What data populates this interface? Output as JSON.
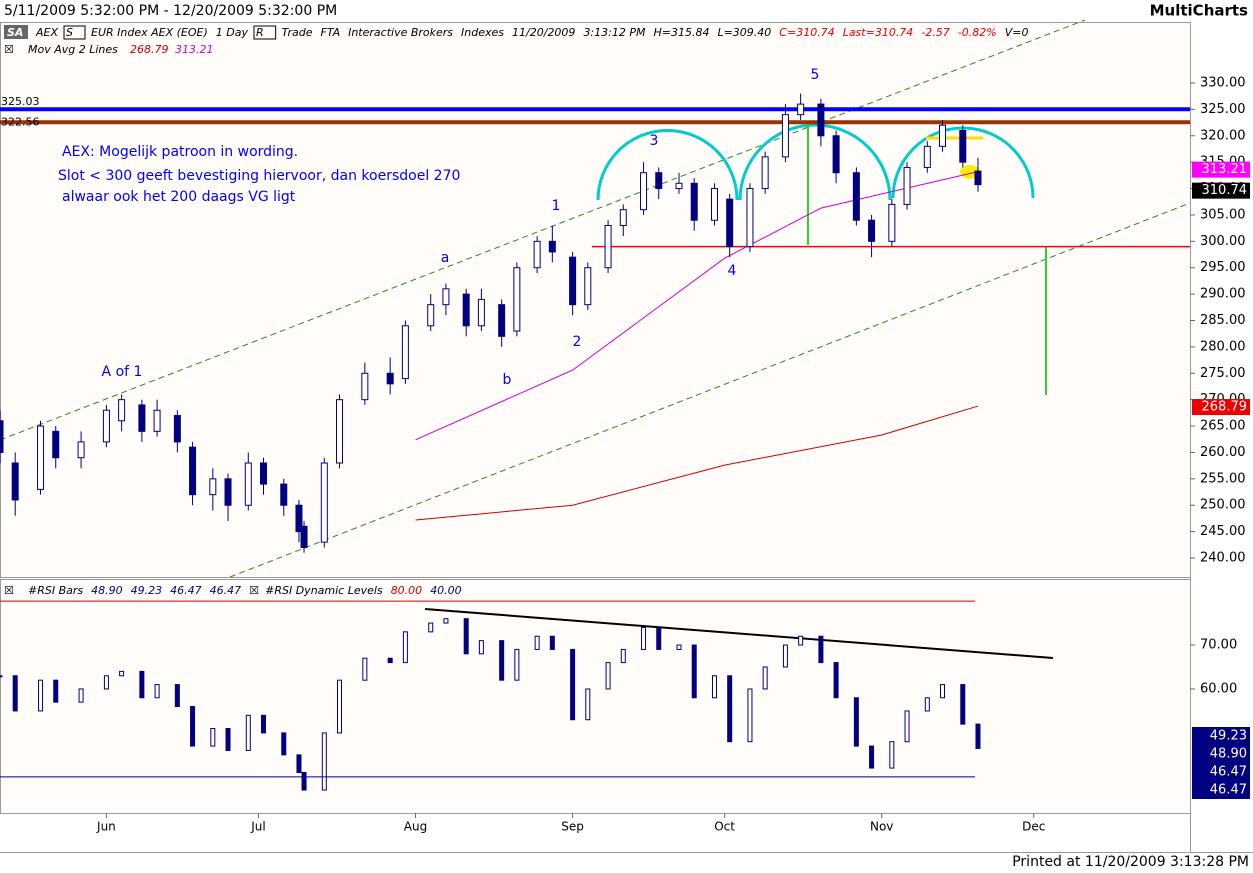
{
  "header": {
    "range": "5/11/2009 5:32:00 PM - 12/20/2009 5:32:00 PM",
    "brand": "MultiCharts",
    "printed": "Printed at 11/20/2009 3:13:28 PM"
  },
  "chart_data": [
    {
      "type": "candlestick",
      "symbol_box": "SA",
      "status": [
        "AEX",
        "S",
        "EUR Index AEX (EOE)",
        "1 Day",
        "R",
        "Trade",
        "FTA",
        "Interactive Brokers",
        "Indexes",
        "11/20/2009",
        "3:13:12 PM",
        "H=315.84",
        "L=309.40",
        "C=310.74",
        "Last=310.74",
        "-2.57",
        "-0.82%",
        "V=0"
      ],
      "study_name": "Mov Avg 2 Lines",
      "color": "#000080",
      "xlim": [
        "2009-05-11",
        "2009-12-20"
      ],
      "xticks": [
        {
          "value": "2009-06-01",
          "label": "Jun"
        },
        {
          "value": "2009-07-01",
          "label": "Jul"
        },
        {
          "value": "2009-08-01",
          "label": "Aug"
        },
        {
          "value": "2009-09-01",
          "label": "Sep"
        },
        {
          "value": "2009-10-01",
          "label": "Oct"
        },
        {
          "value": "2009-11-01",
          "label": "Nov"
        },
        {
          "value": "2009-12-01",
          "label": "Dec"
        }
      ],
      "ylim": [
        236.4,
        337.2
      ],
      "yticks": [
        {
          "value": 240,
          "label": "240.00"
        },
        {
          "value": 245,
          "label": "245.00"
        },
        {
          "value": 250,
          "label": "250.00"
        },
        {
          "value": 255,
          "label": "255.00"
        },
        {
          "value": 260,
          "label": "260.00"
        },
        {
          "value": 265,
          "label": "265.00"
        },
        {
          "value": 270,
          "label": "270.00"
        },
        {
          "value": 275,
          "label": "275.00"
        },
        {
          "value": 280,
          "label": "280.00"
        },
        {
          "value": 285,
          "label": "285.00"
        },
        {
          "value": 290,
          "label": "290.00"
        },
        {
          "value": 295,
          "label": "295.00"
        },
        {
          "value": 300,
          "label": "300.00"
        },
        {
          "value": 305,
          "label": "305.00"
        },
        {
          "value": 310,
          "label": "310.00"
        },
        {
          "value": 315,
          "label": "315.00"
        },
        {
          "value": 320,
          "label": "320.00"
        },
        {
          "value": 325,
          "label": "325.00"
        },
        {
          "value": 330,
          "label": "330.00"
        }
      ],
      "x": [
        "2009-05-11",
        "2009-05-14",
        "2009-05-19",
        "2009-05-22",
        "2009-05-27",
        "2009-06-01",
        "2009-06-04",
        "2009-06-08",
        "2009-06-11",
        "2009-06-15",
        "2009-06-18",
        "2009-06-22",
        "2009-06-25",
        "2009-06-29",
        "2009-07-02",
        "2009-07-06",
        "2009-07-09",
        "2009-07-10",
        "2009-07-14",
        "2009-07-17",
        "2009-07-22",
        "2009-07-27",
        "2009-07-30",
        "2009-08-04",
        "2009-08-07",
        "2009-08-11",
        "2009-08-14",
        "2009-08-18",
        "2009-08-21",
        "2009-08-25",
        "2009-08-28",
        "2009-09-01",
        "2009-09-04",
        "2009-09-08",
        "2009-09-11",
        "2009-09-15",
        "2009-09-18",
        "2009-09-22",
        "2009-09-25",
        "2009-09-29",
        "2009-10-02",
        "2009-10-06",
        "2009-10-09",
        "2009-10-13",
        "2009-10-16",
        "2009-10-20",
        "2009-10-23",
        "2009-10-27",
        "2009-10-30",
        "2009-11-03",
        "2009-11-06",
        "2009-11-10",
        "2009-11-13",
        "2009-11-17",
        "2009-11-20"
      ],
      "open": [
        266,
        258,
        253,
        264,
        259,
        262,
        266,
        269,
        264,
        267,
        261,
        252,
        255,
        250,
        258,
        254,
        250,
        246,
        243,
        258,
        270,
        275,
        274,
        284,
        288,
        290,
        284,
        288,
        283,
        295,
        300,
        297,
        288,
        295,
        303,
        306,
        313,
        310,
        311,
        304,
        308,
        299,
        310,
        316,
        324,
        326,
        320,
        313,
        304,
        300,
        307,
        314,
        318,
        321,
        313.31
      ],
      "high": [
        268,
        260,
        266,
        265,
        264,
        269,
        271,
        270,
        270,
        268,
        262,
        257,
        256,
        260,
        259,
        255,
        251,
        247,
        259,
        271,
        277,
        278,
        285,
        290,
        292,
        291,
        291,
        289,
        296,
        301,
        303,
        298,
        296,
        304,
        307,
        315,
        314,
        313,
        312,
        311,
        309,
        311,
        317,
        326,
        328,
        327,
        321,
        314,
        305,
        308,
        315,
        319,
        323,
        322,
        315.84
      ],
      "low": [
        258,
        248,
        252,
        257,
        257,
        261,
        264,
        262,
        263,
        260,
        250,
        249,
        247,
        249,
        252,
        248,
        243,
        241,
        242,
        257,
        269,
        271,
        273,
        283,
        286,
        282,
        283,
        280,
        282,
        294,
        296,
        286,
        287,
        294,
        301,
        305,
        308,
        309,
        302,
        303,
        297,
        298,
        309,
        315,
        323,
        318,
        311,
        303,
        297,
        299,
        306,
        313,
        317,
        314,
        309.4
      ],
      "close": [
        260,
        251,
        265,
        259,
        262,
        268,
        270,
        264,
        268,
        262,
        252,
        255,
        250,
        258,
        254,
        250,
        245,
        242,
        258,
        270,
        275,
        273,
        284,
        288,
        291,
        284,
        289,
        282,
        295,
        300,
        298,
        288,
        295,
        303,
        306,
        313,
        310,
        311,
        304,
        310,
        299,
        310,
        316,
        324,
        326,
        320,
        313,
        304,
        300,
        307,
        314,
        318,
        322,
        315,
        310.74
      ],
      "series": [
        {
          "color": "#cc0000",
          "x": [
            "2009-08-01",
            "2009-09-01",
            "2009-10-01",
            "2009-11-01",
            "2009-11-20"
          ],
          "values": [
            247.2,
            250,
            257.6,
            263.3,
            268.79
          ]
        },
        {
          "color": "#cc00cc",
          "x": [
            "2009-08-01",
            "2009-09-01",
            "2009-10-01",
            "2009-10-20",
            "2009-11-20"
          ],
          "values": [
            262.4,
            275.6,
            296.8,
            306.3,
            313.21
          ]
        }
      ],
      "hlines": [
        {
          "value": 325.03,
          "color": "#0000ff"
        },
        {
          "value": 322.56,
          "color": "#993300"
        }
      ],
      "support_line": 299,
      "annotations": [
        "AEX: Mogelijk patroon in wording.",
        "Slot < 300 geeft bevestiging hiervoor, dan koersdoel 270",
        "alwaar ook het 200 daags VG ligt",
        "A of 1",
        "a",
        "b",
        "1",
        "2",
        "3",
        "4",
        "5"
      ]
    },
    {
      "type": "rsi_bars",
      "title": "#RSI Bars",
      "levels_title": "#RSI Dynamic Levels",
      "color": "#000080",
      "legend_values": [
        {
          "value": 48.9,
          "label": "48.90"
        },
        {
          "value": 49.23,
          "label": "49.23"
        },
        {
          "value": 46.47,
          "label": "46.47"
        },
        {
          "value": 46.47,
          "label": "46.47"
        }
      ],
      "levels": [
        {
          "value": 80,
          "label": "80.00",
          "color": "#cc0000"
        },
        {
          "value": 40,
          "label": "40.00",
          "color": "#000080"
        }
      ],
      "ylim": [
        32,
        84.8
      ],
      "yticks": [
        {
          "value": 60,
          "label": "60.00"
        },
        {
          "value": 70,
          "label": "70.00"
        }
      ],
      "values": [
        63,
        55,
        62,
        57,
        60,
        63,
        64,
        58,
        61,
        56,
        47,
        51,
        46,
        54,
        50,
        45,
        41,
        37,
        50,
        62,
        67,
        66,
        73,
        75,
        76,
        68,
        71,
        62,
        69,
        72,
        69,
        53,
        60,
        66,
        69,
        74,
        69,
        70,
        58,
        63,
        48,
        60,
        65,
        70,
        72,
        66,
        58,
        47,
        42,
        48,
        55,
        58,
        61,
        52,
        46.47
      ]
    }
  ]
}
